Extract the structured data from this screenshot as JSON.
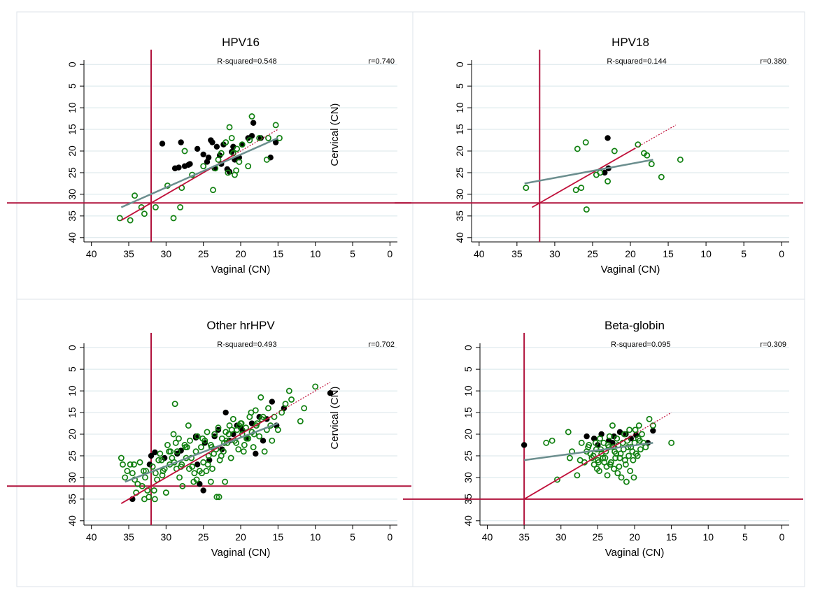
{
  "colors": {
    "frame": "#dde3e8",
    "grid": "#d8e6ea",
    "ref_line": "#b0123c",
    "fit_line": "#6b8e8e",
    "identity_line": "#c0103a",
    "cervical_point": "#000000",
    "vaginal_point": "#108010"
  },
  "chart_data": [
    {
      "type": "scatter",
      "title": "HPV16",
      "xlabel": "Vaginal (CN)",
      "ylabel": "Cervical (CN)",
      "xlim": [
        41,
        -1
      ],
      "ylim": [
        41,
        -1
      ],
      "x_ticks": [
        "40",
        "35",
        "30",
        "25",
        "20",
        "15",
        "10",
        "5",
        "0"
      ],
      "y_ticks": [
        "0",
        "5",
        "10",
        "15",
        "20",
        "25",
        "30",
        "35",
        "40"
      ],
      "grid": "horizontal",
      "r_squared_label": "R-squared=0.548",
      "r_label": "r=0.740",
      "ref_x": 32,
      "ref_y": 32,
      "fit_line": [
        [
          36,
          33
        ],
        [
          15,
          17
        ]
      ],
      "identity_line": [
        [
          36,
          36
        ],
        [
          15,
          15
        ]
      ],
      "series": [
        {
          "marker": "filled",
          "x": [
            30.5,
            28.8,
            28.3,
            28.0,
            27.5,
            27.0,
            26.8,
            25.8,
            25.0,
            24.3,
            24.0,
            23.8,
            23.2,
            22.8,
            22.3,
            21.8,
            21.5,
            21.0,
            20.8,
            20.2,
            19.8,
            19.0,
            18.5,
            18.3,
            17.3,
            16.0,
            15.3,
            24.5,
            23.5,
            22.6,
            21.2
          ],
          "y": [
            18.3,
            24.0,
            23.8,
            18.0,
            23.5,
            23.2,
            23.0,
            19.5,
            20.8,
            21.5,
            17.5,
            18.0,
            19.0,
            21.0,
            18.5,
            24.2,
            24.8,
            19.0,
            22.0,
            21.5,
            18.5,
            17.0,
            16.5,
            13.5,
            17.0,
            21.5,
            18.0,
            22.5,
            24.0,
            23.0,
            20.2
          ]
        },
        {
          "marker": "hollow",
          "x": [
            36.2,
            34.8,
            34.2,
            33.3,
            32.9,
            31.4,
            29.8,
            29.0,
            28.1,
            27.9,
            27.5,
            26.5,
            25.0,
            23.7,
            23.4,
            23.0,
            22.6,
            21.7,
            21.5,
            21.2,
            21.0,
            20.8,
            20.6,
            20.5,
            20.2,
            19.8,
            19.0,
            18.8,
            18.5,
            17.5,
            16.5,
            16.3,
            15.3,
            14.8,
            22.0
          ],
          "y": [
            35.5,
            36.0,
            30.3,
            33.0,
            34.5,
            33.0,
            28.0,
            35.5,
            33.0,
            28.5,
            20.0,
            25.5,
            23.5,
            29.0,
            24.0,
            22.0,
            20.5,
            25.0,
            14.5,
            17.0,
            20.5,
            25.5,
            24.5,
            19.5,
            22.5,
            18.5,
            23.5,
            17.5,
            12.0,
            17.0,
            22.0,
            17.0,
            14.0,
            17.0,
            18.0
          ]
        }
      ],
      "side_label": "Cervical (CN)"
    },
    {
      "type": "scatter",
      "title": "HPV18",
      "xlabel": "Vaginal (CN)",
      "ylabel": "",
      "xlim": [
        41,
        -1
      ],
      "ylim": [
        41,
        -1
      ],
      "x_ticks": [
        "40",
        "35",
        "30",
        "25",
        "20",
        "15",
        "10",
        "5",
        "0"
      ],
      "y_ticks": [
        "0",
        "5",
        "10",
        "15",
        "20",
        "25",
        "30",
        "35",
        "40"
      ],
      "grid": "horizontal",
      "r_squared_label": "R-squared=0.144",
      "r_label": "r=0.380",
      "ref_x": 32,
      "ref_y": 32,
      "fit_line": [
        [
          34,
          27.5
        ],
        [
          17,
          22
        ]
      ],
      "identity_line": [
        [
          33,
          33
        ],
        [
          14,
          14
        ]
      ],
      "series": [
        {
          "marker": "filled",
          "x": [
            23.0,
            23.4,
            22.9
          ],
          "y": [
            17.0,
            25.0,
            24.0
          ]
        },
        {
          "marker": "hollow",
          "x": [
            33.8,
            27.2,
            26.5,
            25.9,
            25.8,
            24.5,
            23.0,
            22.1,
            19.0,
            18.2,
            17.8,
            17.2,
            15.9,
            13.4,
            27.0,
            24.0
          ],
          "y": [
            28.5,
            29.0,
            28.5,
            18.0,
            33.5,
            25.5,
            27.0,
            20.0,
            18.5,
            20.5,
            21.0,
            23.0,
            26.0,
            22.0,
            19.5,
            25.0
          ]
        }
      ],
      "side_label": ""
    },
    {
      "type": "scatter",
      "title": "Other hrHPV",
      "xlabel": "Vaginal (CN)",
      "ylabel": "Cervical (CN)",
      "xlim": [
        41,
        -1
      ],
      "ylim": [
        41,
        -1
      ],
      "x_ticks": [
        "40",
        "35",
        "30",
        "25",
        "20",
        "15",
        "10",
        "5",
        "0"
      ],
      "y_ticks": [
        "0",
        "5",
        "10",
        "15",
        "20",
        "25",
        "30",
        "35",
        "40"
      ],
      "grid": "horizontal",
      "r_squared_label": "R-squared=0.493",
      "r_label": "r=0.702",
      "ref_x": 32,
      "ref_y": 32,
      "fit_line": [
        [
          35.5,
          31
        ],
        [
          15,
          17.5
        ]
      ],
      "identity_line": [
        [
          36,
          36
        ],
        [
          8,
          8
        ]
      ],
      "series": [
        {
          "marker": "filled",
          "x": [
            34.5,
            32.2,
            32.0,
            31.5,
            30.2,
            28.5,
            28.0,
            26.0,
            25.8,
            25.5,
            25.0,
            24.2,
            23.5,
            23.0,
            22.5,
            22.0,
            21.5,
            21.0,
            20.5,
            20.0,
            19.2,
            18.5,
            18.0,
            17.5,
            17.0,
            16.5,
            15.8,
            15.2,
            14.2,
            8.0,
            26.0,
            24.8,
            19.8
          ],
          "y": [
            35.0,
            27.0,
            25.0,
            24.2,
            25.5,
            24.5,
            23.8,
            20.5,
            27.0,
            31.5,
            33.0,
            26.0,
            20.5,
            19.0,
            23.5,
            15.0,
            21.5,
            20.0,
            18.0,
            18.5,
            21.0,
            17.5,
            24.5,
            16.0,
            21.5,
            16.5,
            12.5,
            18.0,
            14.0,
            10.5,
            20.8,
            22.0,
            19.0
          ]
        },
        {
          "marker": "hollow",
          "x": [
            36.0,
            35.8,
            35.2,
            34.8,
            34.5,
            34.3,
            34.0,
            33.5,
            33.2,
            33.0,
            32.8,
            32.5,
            32.3,
            31.8,
            31.5,
            31.2,
            31.0,
            30.8,
            30.5,
            30.2,
            30.0,
            29.8,
            29.5,
            29.2,
            29.0,
            28.8,
            28.7,
            28.5,
            28.3,
            28.0,
            27.8,
            27.5,
            27.3,
            27.0,
            26.8,
            26.5,
            26.3,
            26.0,
            25.8,
            25.5,
            25.3,
            25.0,
            24.8,
            24.5,
            24.3,
            24.0,
            23.8,
            23.5,
            23.3,
            23.0,
            22.8,
            22.5,
            22.3,
            22.0,
            21.8,
            21.5,
            21.3,
            21.0,
            20.8,
            20.5,
            20.3,
            20.0,
            19.8,
            19.5,
            19.3,
            19.0,
            18.8,
            18.5,
            18.3,
            18.0,
            17.8,
            17.5,
            17.3,
            17.0,
            16.8,
            16.5,
            16.3,
            16.0,
            15.8,
            15.5,
            15.0,
            14.5,
            14.0,
            13.5,
            13.2,
            12.0,
            11.5,
            10.0,
            35.5,
            34.2,
            33.8,
            32.7,
            31.4,
            30.6,
            29.6,
            28.9,
            27.9,
            27.2,
            26.6,
            25.9,
            25.2,
            24.6,
            23.9,
            23.2,
            22.6,
            21.9,
            21.2,
            20.6,
            19.9,
            19.2,
            18.6,
            17.9,
            17.2,
            28.6,
            27.4,
            26.2,
            24.4,
            23.6,
            22.2,
            21.6,
            20.2,
            19.6,
            18.2,
            24.0,
            22.9,
            22.1,
            25.1,
            26.9,
            28.2,
            29.4,
            30.4,
            31.6,
            32.9
          ],
          "y": [
            25.5,
            27.0,
            28.5,
            27.0,
            29.0,
            27.0,
            33.5,
            26.5,
            32.0,
            28.5,
            30.0,
            33.0,
            34.5,
            27.5,
            35.0,
            30.5,
            26.0,
            24.5,
            29.5,
            28.0,
            33.5,
            22.5,
            27.0,
            25.5,
            20.0,
            13.0,
            22.0,
            24.0,
            21.0,
            27.5,
            32.0,
            22.5,
            25.5,
            18.0,
            21.5,
            27.5,
            31.0,
            24.0,
            20.5,
            28.5,
            23.0,
            26.5,
            21.5,
            19.5,
            25.0,
            22.5,
            28.0,
            20.0,
            23.5,
            18.5,
            26.0,
            21.0,
            24.0,
            19.5,
            22.0,
            18.0,
            25.5,
            16.5,
            21.5,
            19.0,
            23.5,
            17.5,
            20.0,
            22.5,
            18.5,
            21.0,
            16.0,
            19.5,
            23.0,
            14.5,
            17.5,
            20.5,
            11.5,
            16.0,
            24.0,
            19.0,
            14.0,
            18.0,
            21.5,
            16.0,
            19.0,
            15.0,
            13.0,
            10.0,
            12.0,
            17.0,
            14.0,
            9.0,
            30.0,
            30.5,
            31.5,
            28.5,
            29.0,
            26.0,
            24.0,
            26.5,
            27.0,
            23.0,
            25.5,
            30.5,
            29.0,
            28.5,
            23.0,
            34.5,
            25.0,
            21.5,
            19.0,
            22.0,
            17.5,
            21.0,
            15.0,
            18.0,
            16.5,
            28.0,
            23.0,
            29.0,
            27.0,
            24.5,
            22.0,
            20.0,
            18.0,
            24.0,
            20.0,
            31.0,
            34.5,
            31.0,
            21.0,
            28.0,
            30.0,
            24.0,
            28.5,
            33.0,
            35.0
          ]
        }
      ],
      "side_label": "Cervical (CN)"
    },
    {
      "type": "scatter",
      "title": "Beta-globin",
      "xlabel": "Vaginal (CN)",
      "ylabel": "",
      "xlim": [
        41,
        -1
      ],
      "ylim": [
        41,
        -1
      ],
      "x_ticks": [
        "40",
        "35",
        "30",
        "25",
        "20",
        "15",
        "10",
        "5",
        "0"
      ],
      "y_ticks": [
        "0",
        "5",
        "10",
        "15",
        "20",
        "25",
        "30",
        "35",
        "40"
      ],
      "grid": "horizontal",
      "r_squared_label": "R-squared=0.095",
      "r_label": "r=0.309",
      "ref_x": 35,
      "ref_y": 35,
      "fit_line": [
        [
          35,
          26
        ],
        [
          17.5,
          22
        ]
      ],
      "identity_line": [
        [
          35,
          35
        ],
        [
          15,
          15
        ]
      ],
      "series": [
        {
          "marker": "filled",
          "x": [
            35.0,
            26.5,
            25.5,
            24.5,
            23.5,
            22.8,
            22.0,
            21.2,
            20.5,
            19.8,
            18.2,
            17.5,
            25.0,
            23.0
          ],
          "y": [
            22.5,
            20.5,
            21.0,
            20.0,
            21.5,
            20.5,
            19.5,
            20.0,
            21.0,
            20.2,
            22.0,
            19.2,
            22.5,
            22.0
          ]
        },
        {
          "marker": "hollow",
          "x": [
            32.0,
            31.2,
            30.5,
            29.0,
            28.8,
            28.5,
            27.8,
            27.2,
            26.8,
            26.5,
            26.2,
            25.8,
            25.5,
            25.2,
            25.0,
            24.8,
            24.5,
            24.2,
            24.0,
            23.8,
            23.5,
            23.2,
            23.0,
            22.8,
            22.5,
            22.2,
            22.0,
            21.8,
            21.5,
            21.2,
            21.0,
            20.8,
            20.5,
            20.2,
            20.0,
            19.8,
            19.5,
            19.2,
            19.0,
            18.8,
            18.5,
            18.0,
            17.5,
            15.0,
            26.0,
            25.6,
            25.3,
            24.9,
            24.6,
            24.3,
            23.9,
            23.6,
            23.3,
            22.9,
            22.6,
            22.3,
            21.9,
            21.6,
            21.3,
            20.9,
            20.6,
            20.3,
            19.9,
            19.6,
            19.3,
            26.3,
            25.1,
            23.7,
            22.4,
            21.1,
            20.1,
            23.4,
            22.1,
            24.7,
            21.4,
            27.4,
            20.7,
            19.4,
            22.7,
            24.1
          ],
          "y": [
            22.0,
            21.5,
            30.5,
            19.5,
            25.5,
            24.0,
            29.5,
            22.0,
            26.5,
            24.0,
            22.5,
            25.5,
            27.0,
            23.5,
            26.0,
            28.5,
            24.5,
            22.0,
            25.5,
            27.5,
            23.0,
            26.5,
            18.0,
            28.0,
            24.5,
            22.5,
            25.5,
            30.0,
            23.5,
            27.0,
            21.5,
            25.0,
            23.0,
            26.0,
            22.0,
            24.5,
            21.0,
            23.5,
            20.0,
            22.0,
            23.0,
            16.5,
            18.0,
            22.0,
            24.5,
            25.0,
            22.0,
            26.5,
            23.5,
            25.5,
            24.0,
            22.5,
            27.0,
            23.0,
            25.5,
            29.0,
            24.5,
            22.0,
            26.0,
            23.0,
            28.5,
            24.0,
            19.0,
            25.0,
            21.5,
            23.0,
            28.0,
            29.5,
            21.0,
            31.0,
            30.0,
            20.5,
            27.5,
            21.0,
            20.0,
            26.0,
            19.0,
            18.0,
            24.0,
            26.5
          ]
        }
      ],
      "side_label": ""
    }
  ]
}
